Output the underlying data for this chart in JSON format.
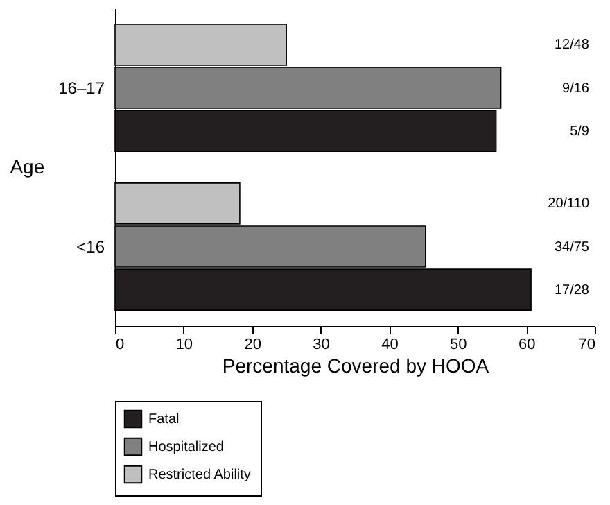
{
  "chart_data": {
    "type": "bar",
    "orientation": "horizontal",
    "categories": [
      "16–17",
      "<16"
    ],
    "xlabel": "Percentage Covered by HOOA",
    "ylabel": "Age",
    "xlim": [
      0,
      70
    ],
    "xticks": [
      0,
      10,
      20,
      30,
      40,
      50,
      60,
      70
    ],
    "legend": "bottom",
    "annotations": [
      "12/48",
      "9/16",
      "5/9",
      "20/110",
      "34/75",
      "17/28"
    ],
    "series": [
      {
        "name": "Fatal",
        "color": "#231f20",
        "values": [
          55.6,
          60.7
        ]
      },
      {
        "name": "Hospitalized",
        "color": "#808080",
        "values": [
          56.3,
          45.3
        ]
      },
      {
        "name": "Restricted Ability",
        "color": "#c0c0c0",
        "values": [
          25,
          18.2
        ]
      }
    ]
  }
}
